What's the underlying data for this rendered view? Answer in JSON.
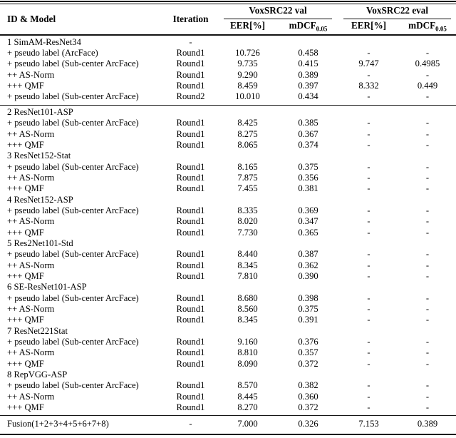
{
  "colors": {
    "text": "#000000",
    "rule": "#141414",
    "background": "#ffffff"
  },
  "table": {
    "columns": {
      "id_model": "ID & Model",
      "iteration": "Iteration"
    },
    "groups": [
      {
        "label": "VoxSRC22 val"
      },
      {
        "label": "VoxSRC22 eval"
      }
    ],
    "sub_columns": [
      {
        "text": "EER[%]"
      },
      {
        "text": "mDCF",
        "sub": "0.05"
      },
      {
        "text": "EER[%]"
      },
      {
        "text": "mDCF",
        "sub": "0.05"
      }
    ],
    "sections": [
      {
        "rows": [
          {
            "cells": [
              "1 SimAM-ResNet34",
              "-",
              "",
              "",
              "",
              ""
            ]
          },
          {
            "cells": [
              "+ pseudo label (ArcFace)",
              "Round1",
              "10.726",
              "0.458",
              "-",
              "-"
            ]
          },
          {
            "cells": [
              "+ pseudo label (Sub-center ArcFace)",
              "Round1",
              "9.735",
              "0.415",
              "9.747",
              "0.4985"
            ]
          },
          {
            "cells": [
              "++ AS-Norm",
              "Round1",
              "9.290",
              "0.389",
              "-",
              "-"
            ]
          },
          {
            "cells": [
              "+++ QMF",
              "Round1",
              "8.459",
              "0.397",
              "8.332",
              "0.449"
            ]
          },
          {
            "cells": [
              "+ pseudo label (Sub-center ArcFace)",
              "Round2",
              "10.010",
              "0.434",
              "-",
              "-"
            ]
          }
        ]
      },
      {
        "rows": [
          {
            "cells": [
              "2 ResNet101-ASP",
              "",
              "",
              "",
              "",
              ""
            ]
          },
          {
            "cells": [
              "+ pseudo label (Sub-center ArcFace)",
              "Round1",
              "8.425",
              "0.385",
              "-",
              "-"
            ]
          },
          {
            "cells": [
              "++ AS-Norm",
              "Round1",
              "8.275",
              "0.367",
              "-",
              "-"
            ]
          },
          {
            "cells": [
              "+++ QMF",
              "Round1",
              "8.065",
              "0.374",
              "-",
              "-"
            ]
          },
          {
            "cells": [
              "3 ResNet152-Stat",
              "",
              "",
              "",
              "",
              ""
            ]
          },
          {
            "cells": [
              "+ pseudo label (Sub-center ArcFace)",
              "Round1",
              "8.165",
              "0.375",
              "-",
              "-"
            ]
          },
          {
            "cells": [
              "++ AS-Norm",
              "Round1",
              "7.875",
              "0.356",
              "-",
              "-"
            ]
          },
          {
            "cells": [
              "+++ QMF",
              "Round1",
              "7.455",
              "0.381",
              "-",
              "-"
            ]
          },
          {
            "cells": [
              "4 ResNet152-ASP",
              "",
              "",
              "",
              "",
              ""
            ]
          },
          {
            "cells": [
              "+ pseudo label (Sub-center ArcFace)",
              "Round1",
              "8.335",
              "0.369",
              "-",
              "-"
            ]
          },
          {
            "cells": [
              "++ AS-Norm",
              "Round1",
              "8.020",
              "0.347",
              "-",
              "-"
            ]
          },
          {
            "cells": [
              "+++ QMF",
              "Round1",
              "7.730",
              "0.365",
              "-",
              "-"
            ]
          },
          {
            "cells": [
              "5 Res2Net101-Std",
              "",
              "",
              "",
              "",
              ""
            ]
          },
          {
            "cells": [
              "+ pseudo label (Sub-center ArcFace)",
              "Round1",
              "8.440",
              "0.387",
              "-",
              "-"
            ]
          },
          {
            "cells": [
              "++ AS-Norm",
              "Round1",
              "8.345",
              "0.362",
              "-",
              "-"
            ]
          },
          {
            "cells": [
              "+++ QMF",
              "Round1",
              "7.810",
              "0.390",
              "-",
              "-"
            ]
          },
          {
            "cells": [
              "6 SE-ResNet101-ASP",
              "",
              "",
              "",
              "",
              ""
            ]
          },
          {
            "cells": [
              "+ pseudo label (Sub-center ArcFace)",
              "Round1",
              "8.680",
              "0.398",
              "-",
              "-"
            ]
          },
          {
            "cells": [
              "++ AS-Norm",
              "Round1",
              "8.560",
              "0.375",
              "-",
              "-"
            ]
          },
          {
            "cells": [
              "+++ QMF",
              "Round1",
              "8.345",
              "0.391",
              "-",
              "-"
            ]
          },
          {
            "cells": [
              "7 ResNet221Stat",
              "",
              "",
              "",
              "",
              ""
            ]
          },
          {
            "cells": [
              "+ pseudo label (Sub-center ArcFace)",
              "Round1",
              "9.160",
              "0.376",
              "-",
              "-"
            ]
          },
          {
            "cells": [
              "++ AS-Norm",
              "Round1",
              "8.810",
              "0.357",
              "-",
              "-"
            ]
          },
          {
            "cells": [
              "+++ QMF",
              "Round1",
              "8.090",
              "0.372",
              "-",
              "-"
            ]
          },
          {
            "cells": [
              "8 RepVGG-ASP",
              "",
              "",
              "",
              "",
              ""
            ]
          },
          {
            "cells": [
              "+ pseudo label (Sub-center ArcFace)",
              "Round1",
              "8.570",
              "0.382",
              "-",
              "-"
            ]
          },
          {
            "cells": [
              "++ AS-Norm",
              "Round1",
              "8.445",
              "0.360",
              "-",
              "-"
            ]
          },
          {
            "cells": [
              "+++ QMF",
              "Round1",
              "8.270",
              "0.372",
              "-",
              "-"
            ]
          }
        ]
      },
      {
        "rows": [
          {
            "cells": [
              "Fusion(1+2+3+4+5+6+7+8)",
              "-",
              "7.000",
              "0.326",
              "7.153",
              "0.389"
            ]
          }
        ]
      }
    ]
  }
}
